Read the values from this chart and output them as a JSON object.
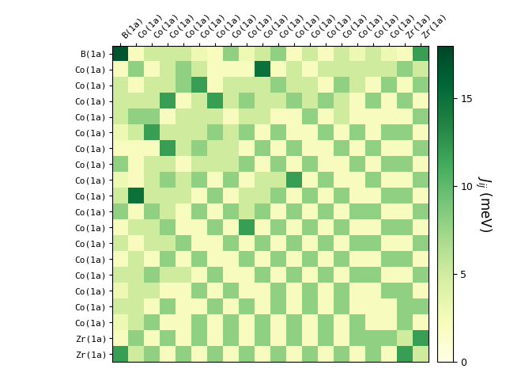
{
  "labels": [
    "B(1a)",
    "Co(1a)",
    "Co(1a)",
    "Co(1a)",
    "Co(1a)",
    "Co(1a)",
    "Co(1a)",
    "Co(1a)",
    "Co(1a)",
    "Co(1a)",
    "Co(1a)",
    "Co(1a)",
    "Co(1a)",
    "Co(1a)",
    "Co(1a)",
    "Co(1a)",
    "Co(1a)",
    "Co(1a)",
    "Zr(1a)",
    "Zr(1a)"
  ],
  "colorbar_label": "$J_{ij}$ (meV)",
  "vmin": 0,
  "vmax": 18,
  "cmap": "YlGn",
  "matrix": [
    [
      17,
      2,
      5,
      5,
      5,
      3,
      2,
      8,
      3,
      5,
      8,
      2,
      5,
      2,
      5,
      3,
      5,
      3,
      2,
      12
    ],
    [
      2,
      8,
      2,
      5,
      8,
      5,
      2,
      2,
      2,
      15,
      2,
      5,
      2,
      5,
      5,
      5,
      5,
      5,
      8,
      5
    ],
    [
      5,
      2,
      5,
      5,
      8,
      12,
      2,
      5,
      5,
      5,
      8,
      5,
      5,
      2,
      8,
      5,
      2,
      8,
      2,
      8
    ],
    [
      5,
      5,
      5,
      12,
      2,
      5,
      12,
      5,
      8,
      5,
      5,
      8,
      5,
      8,
      5,
      2,
      8,
      2,
      8,
      2
    ],
    [
      5,
      8,
      8,
      2,
      5,
      5,
      5,
      2,
      5,
      5,
      2,
      2,
      8,
      2,
      5,
      2,
      2,
      2,
      2,
      8
    ],
    [
      3,
      5,
      12,
      5,
      5,
      5,
      8,
      5,
      8,
      2,
      8,
      2,
      2,
      8,
      2,
      8,
      2,
      8,
      8,
      2
    ],
    [
      2,
      2,
      2,
      12,
      5,
      8,
      5,
      5,
      2,
      8,
      2,
      8,
      2,
      2,
      8,
      2,
      8,
      2,
      2,
      8
    ],
    [
      8,
      2,
      5,
      5,
      2,
      5,
      5,
      5,
      8,
      2,
      8,
      2,
      8,
      2,
      2,
      8,
      2,
      8,
      8,
      2
    ],
    [
      3,
      2,
      5,
      8,
      5,
      8,
      2,
      8,
      2,
      5,
      5,
      12,
      2,
      8,
      2,
      2,
      8,
      2,
      2,
      8
    ],
    [
      5,
      15,
      5,
      5,
      5,
      2,
      8,
      2,
      5,
      5,
      8,
      2,
      8,
      2,
      8,
      2,
      2,
      8,
      8,
      2
    ],
    [
      8,
      2,
      8,
      5,
      2,
      8,
      2,
      8,
      5,
      8,
      2,
      8,
      2,
      8,
      2,
      8,
      8,
      2,
      2,
      8
    ],
    [
      2,
      5,
      5,
      8,
      2,
      2,
      8,
      2,
      12,
      2,
      8,
      2,
      8,
      2,
      8,
      2,
      2,
      8,
      8,
      2
    ],
    [
      5,
      2,
      5,
      5,
      8,
      2,
      2,
      8,
      2,
      8,
      2,
      8,
      2,
      8,
      2,
      8,
      8,
      2,
      2,
      8
    ],
    [
      2,
      5,
      2,
      8,
      2,
      8,
      2,
      2,
      8,
      2,
      8,
      2,
      8,
      2,
      8,
      2,
      2,
      8,
      8,
      2
    ],
    [
      5,
      5,
      8,
      5,
      5,
      2,
      8,
      2,
      2,
      8,
      2,
      8,
      2,
      8,
      2,
      8,
      8,
      2,
      2,
      8
    ],
    [
      3,
      5,
      5,
      2,
      2,
      8,
      2,
      8,
      2,
      2,
      8,
      2,
      8,
      2,
      8,
      2,
      2,
      8,
      8,
      2
    ],
    [
      5,
      5,
      2,
      8,
      2,
      2,
      8,
      2,
      8,
      2,
      8,
      2,
      8,
      2,
      8,
      2,
      2,
      2,
      8,
      8
    ],
    [
      3,
      5,
      8,
      2,
      2,
      8,
      2,
      8,
      2,
      8,
      2,
      8,
      2,
      8,
      2,
      8,
      2,
      2,
      8,
      2
    ],
    [
      2,
      8,
      2,
      8,
      2,
      8,
      2,
      8,
      2,
      8,
      2,
      8,
      2,
      8,
      2,
      8,
      8,
      8,
      5,
      12
    ],
    [
      12,
      5,
      8,
      2,
      8,
      2,
      8,
      2,
      8,
      2,
      8,
      2,
      8,
      2,
      8,
      2,
      8,
      2,
      12,
      5
    ]
  ],
  "figsize": [
    6.4,
    4.8
  ],
  "dpi": 100,
  "tick_fontsize": 8,
  "colorbar_ticks": [
    0,
    5,
    10,
    15
  ]
}
